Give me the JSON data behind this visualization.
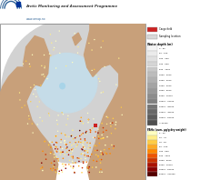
{
  "background_color": "#c8a07a",
  "map_land_color": "#c8a07a",
  "map_ocean_color": "#d2d2d2",
  "map_arctic_ice_color": "#c5dce8",
  "map_border_color": "#888888",
  "map_bg": "#c8a07a",
  "legend_flag_color": "#cc2222",
  "legend_sampling_color": "#d8d8d8",
  "depth_legend": [
    {
      "label": "0 - 50",
      "color": "#f5f5f5"
    },
    {
      "label": "50 - 100",
      "color": "#ebebeb"
    },
    {
      "label": "100 - 200",
      "color": "#e0e0e0"
    },
    {
      "label": "200 - 500",
      "color": "#d5d5d5"
    },
    {
      "label": "500 - 1000",
      "color": "#c8c8c8"
    },
    {
      "label": "1000 - 2000",
      "color": "#bcbcbc"
    },
    {
      "label": "2000 - 3000",
      "color": "#b0b0b0"
    },
    {
      "label": "3000 - 4000",
      "color": "#a4a4a4"
    },
    {
      "label": "4000 - 5000",
      "color": "#989898"
    },
    {
      "label": "5000 - 10000",
      "color": "#8c8c8c"
    },
    {
      "label": "10000 - 20000",
      "color": "#808080"
    },
    {
      "label": "20000 - 30000",
      "color": "#747474"
    },
    {
      "label": "30000 - 40000",
      "color": "#686868"
    },
    {
      "label": "40000 - 50000",
      "color": "#5c5c5c"
    },
    {
      "label": "> 50000",
      "color": "#505050"
    }
  ],
  "pah_legend": [
    {
      "label": "2 - 20",
      "color": "#ffffc0"
    },
    {
      "label": "20 - 40",
      "color": "#ffee88"
    },
    {
      "label": "40 - 80",
      "color": "#ffcc44"
    },
    {
      "label": "80 - 100",
      "color": "#ffaa22"
    },
    {
      "label": "100 - 500",
      "color": "#ff8800"
    },
    {
      "label": "500 - 1000",
      "color": "#ee5500"
    },
    {
      "label": "1000 - 5000",
      "color": "#cc3300"
    },
    {
      "label": "5000 - 10000",
      "color": "#aa1100"
    },
    {
      "label": "10000 - 50000",
      "color": "#880000"
    },
    {
      "label": "50000 - 100000",
      "color": "#550000"
    }
  ],
  "header_bg": "#ffffff",
  "header_text": "Arctic Monitoring and Assessment Programme",
  "header_url": "www.amap.no",
  "logo_arc_color": "#336699",
  "logo_flag_color": "#003399"
}
